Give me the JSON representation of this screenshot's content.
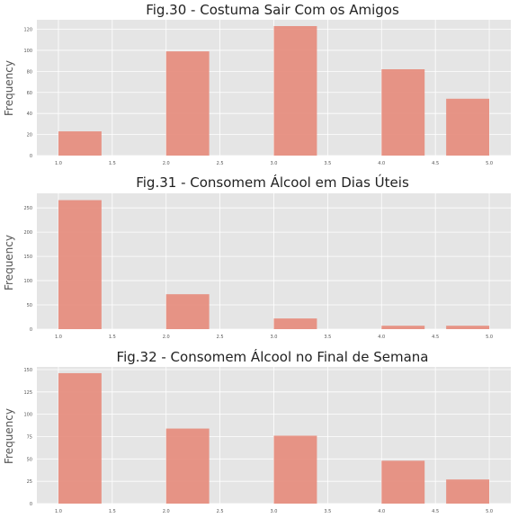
{
  "chart_data": [
    {
      "type": "bar",
      "title": "Fig.30 - Costuma Sair Com os Amigos",
      "xlabel": "",
      "ylabel": "Frequency",
      "x": [
        1,
        2,
        3,
        4,
        5
      ],
      "values": [
        23,
        99,
        123,
        82,
        54
      ],
      "xlim": [
        0.8,
        5.2
      ],
      "ylim": [
        0,
        129
      ],
      "xticks": [
        "1.0",
        "1.5",
        "2.0",
        "2.5",
        "3.0",
        "3.5",
        "4.0",
        "4.5",
        "5.0"
      ],
      "yticks": [
        "0",
        "20",
        "40",
        "60",
        "80",
        "100",
        "120"
      ],
      "grid": true
    },
    {
      "type": "bar",
      "title": "Fig.31 - Consomem Álcool em Dias Úteis",
      "xlabel": "",
      "ylabel": "Frequency",
      "x": [
        1,
        2,
        3,
        4,
        5
      ],
      "values": [
        266,
        72,
        22,
        7,
        7
      ],
      "xlim": [
        0.8,
        5.2
      ],
      "ylim": [
        0,
        280
      ],
      "xticks": [
        "1.0",
        "1.5",
        "2.0",
        "2.5",
        "3.0",
        "3.5",
        "4.0",
        "4.5",
        "5.0"
      ],
      "yticks": [
        "0",
        "50",
        "100",
        "150",
        "200",
        "250"
      ],
      "grid": true
    },
    {
      "type": "bar",
      "title": "Fig.32 - Consomem Álcool no Final de Semana",
      "xlabel": "",
      "ylabel": "Frequency",
      "x": [
        1,
        2,
        3,
        4,
        5
      ],
      "values": [
        146,
        84,
        76,
        48,
        27
      ],
      "xlim": [
        0.8,
        5.2
      ],
      "ylim": [
        0,
        153
      ],
      "xticks": [
        "1.0",
        "1.5",
        "2.0",
        "2.5",
        "3.0",
        "3.5",
        "4.0",
        "4.5",
        "5.0"
      ],
      "yticks": [
        "0",
        "25",
        "50",
        "75",
        "100",
        "125",
        "150"
      ],
      "grid": true
    }
  ],
  "colors": {
    "bar": "#e5897a",
    "axes_bg": "#e5e5e5",
    "grid": "#ffffff"
  }
}
